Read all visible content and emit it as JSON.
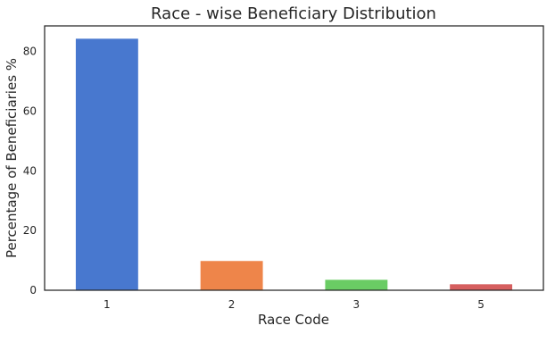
{
  "chart_data": {
    "type": "bar",
    "title": "Race - wise Beneficiary Distribution",
    "xlabel": "Race Code",
    "ylabel": "Percentage of Beneficiaries %",
    "categories": [
      "1",
      "2",
      "3",
      "5"
    ],
    "values": [
      84.3,
      9.8,
      3.5,
      2.0
    ],
    "colors": [
      "#4878cf",
      "#ee854a",
      "#6acc64",
      "#d65f5f"
    ],
    "yticks": [
      0,
      20,
      40,
      60,
      80
    ],
    "ylim": [
      0,
      88.6
    ],
    "grid": false,
    "legend": "none"
  }
}
